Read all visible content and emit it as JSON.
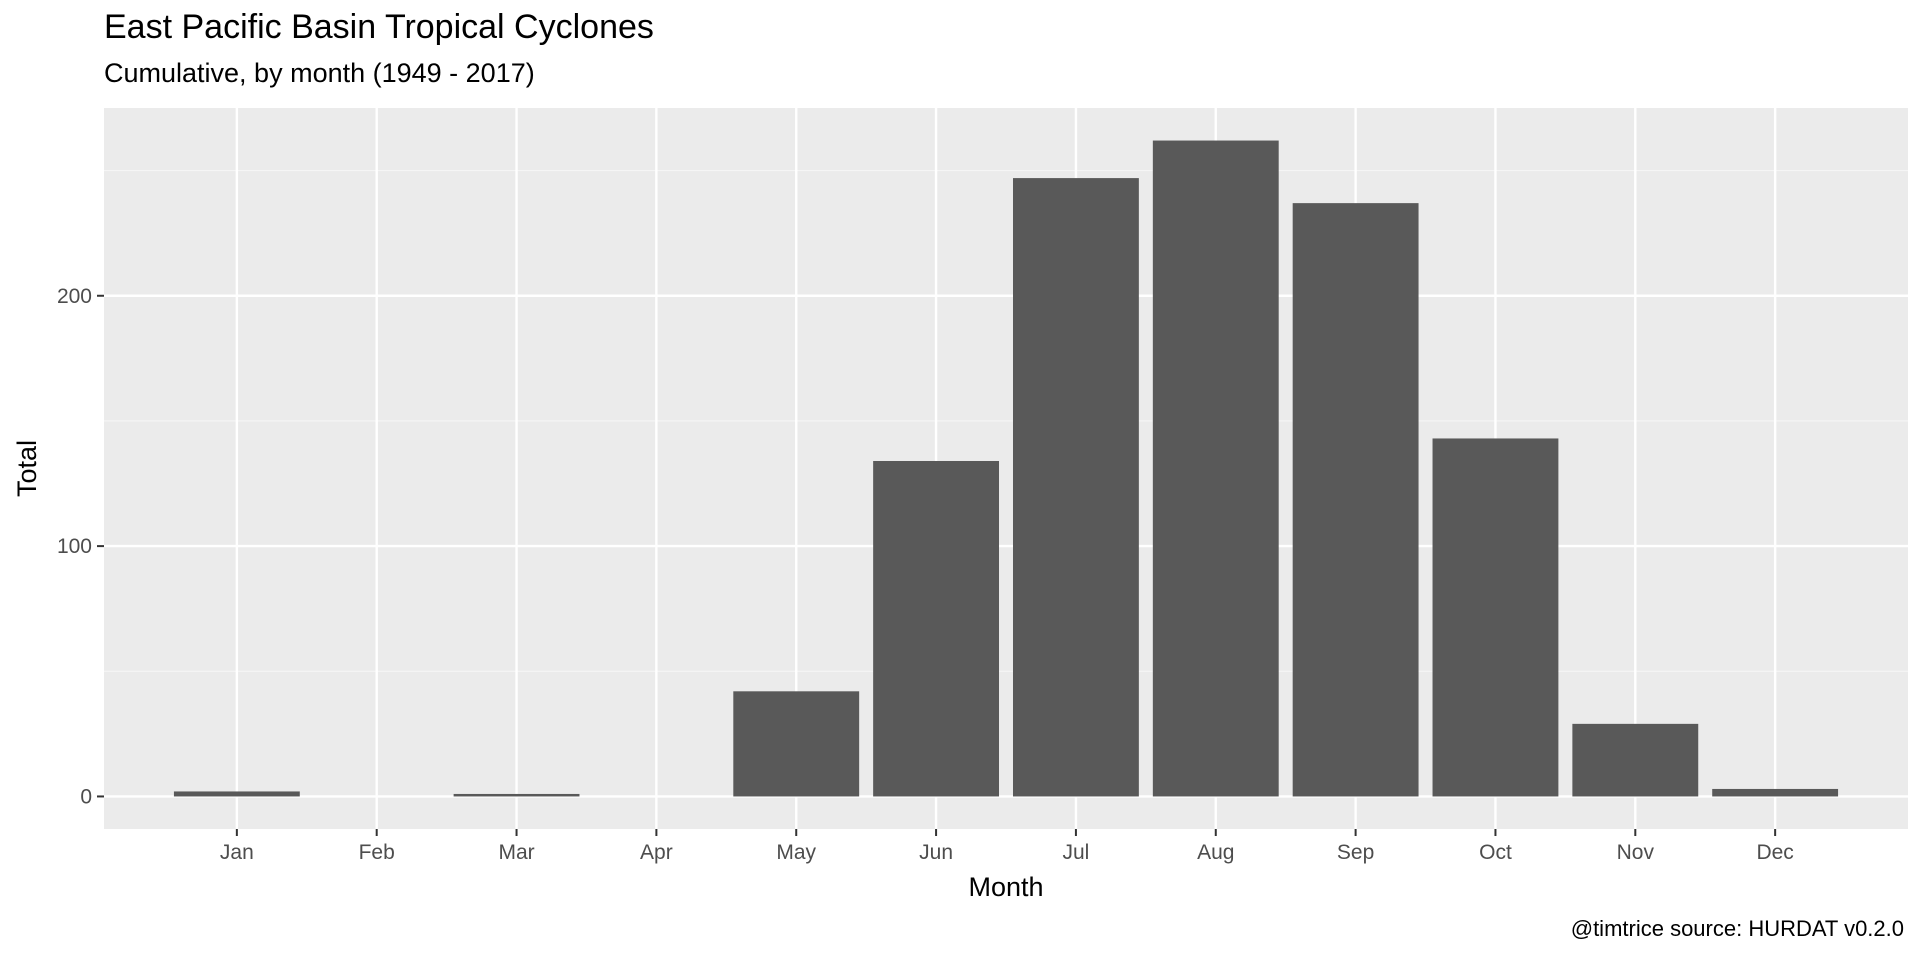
{
  "chart_data": {
    "type": "bar",
    "title": "East Pacific Basin Tropical Cyclones",
    "subtitle": "Cumulative, by month (1949 - 2017)",
    "caption": "@timtrice source: HURDAT v0.2.0",
    "xlabel": "Month",
    "ylabel": "Total",
    "categories": [
      "Jan",
      "Feb",
      "Mar",
      "Apr",
      "May",
      "Jun",
      "Jul",
      "Aug",
      "Sep",
      "Oct",
      "Nov",
      "Dec"
    ],
    "values": [
      2,
      0,
      1,
      0,
      42,
      134,
      247,
      262,
      237,
      143,
      29,
      3
    ],
    "ylim": [
      -13,
      275
    ],
    "yticks": [
      0,
      100,
      200
    ],
    "grid": true,
    "colors": {
      "bar": "#595959",
      "panel": "#ebebeb",
      "grid_major": "#ffffff",
      "grid_minor": "#f5f5f5"
    }
  }
}
